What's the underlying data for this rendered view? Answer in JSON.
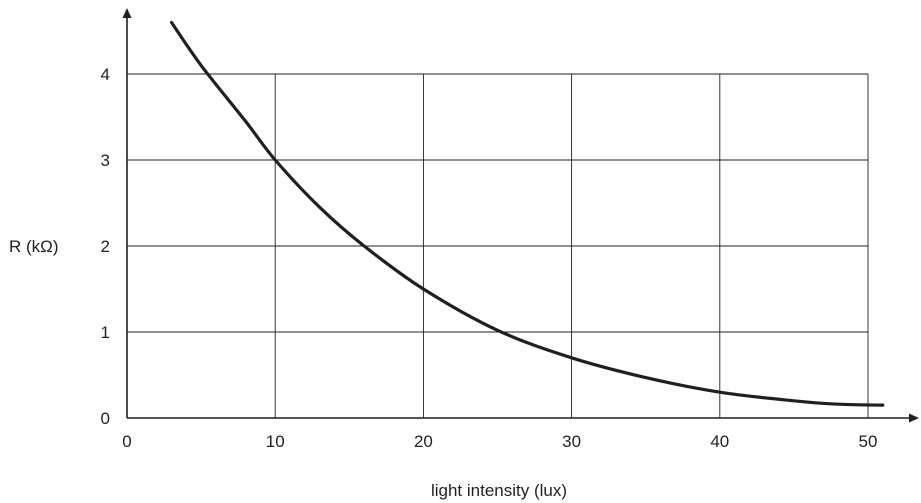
{
  "chart_data": {
    "type": "line",
    "title": "",
    "xlabel": "light intensity (lux)",
    "ylabel": "R (kΩ)",
    "xlim": [
      0,
      50
    ],
    "ylim": [
      0,
      4
    ],
    "x_ticks": [
      0,
      10,
      20,
      30,
      40,
      50
    ],
    "y_ticks": [
      0,
      1,
      2,
      3,
      4
    ],
    "grid": true,
    "series": [
      {
        "x": [
          3,
          5,
          8,
          10,
          13,
          16,
          20,
          25,
          30,
          35,
          40,
          45,
          48,
          51
        ],
        "y": [
          4.6,
          4.1,
          3.45,
          3.0,
          2.45,
          2.0,
          1.5,
          1.02,
          0.7,
          0.47,
          0.3,
          0.2,
          0.16,
          0.15
        ]
      }
    ],
    "colors": {
      "curve": "#231f20",
      "axis": "#231f20",
      "grid": "#231f20"
    }
  }
}
